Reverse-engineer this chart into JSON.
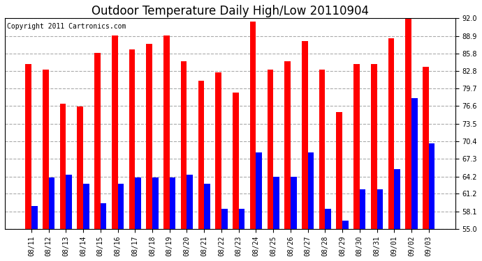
{
  "title": "Outdoor Temperature Daily High/Low 20110904",
  "copyright": "Copyright 2011 Cartronics.com",
  "dates": [
    "08/11",
    "08/12",
    "08/13",
    "08/14",
    "08/15",
    "08/16",
    "08/17",
    "08/18",
    "08/19",
    "08/20",
    "08/21",
    "08/22",
    "08/23",
    "08/24",
    "08/25",
    "08/26",
    "08/27",
    "08/28",
    "08/29",
    "08/30",
    "08/31",
    "09/01",
    "09/02",
    "09/03"
  ],
  "highs": [
    84.0,
    83.0,
    77.0,
    76.5,
    86.0,
    89.0,
    86.5,
    87.5,
    89.0,
    84.5,
    81.0,
    82.5,
    79.0,
    91.5,
    83.0,
    84.5,
    88.0,
    83.0,
    75.5,
    84.0,
    84.0,
    88.5,
    92.5,
    83.5
  ],
  "lows": [
    59.0,
    64.0,
    64.5,
    63.0,
    59.5,
    63.0,
    64.0,
    64.0,
    64.0,
    64.5,
    63.0,
    58.5,
    58.5,
    68.5,
    64.2,
    64.2,
    68.5,
    58.5,
    56.5,
    62.0,
    62.0,
    65.5,
    78.0,
    70.0
  ],
  "bar_width": 0.35,
  "high_color": "#ff0000",
  "low_color": "#0000ff",
  "ylim": [
    55.0,
    92.0
  ],
  "yticks": [
    55.0,
    58.1,
    61.2,
    64.2,
    67.3,
    70.4,
    73.5,
    76.6,
    79.7,
    82.8,
    85.8,
    88.9,
    92.0
  ],
  "background_color": "#ffffff",
  "grid_color": "#aaaaaa",
  "title_fontsize": 12,
  "copyright_fontsize": 7
}
